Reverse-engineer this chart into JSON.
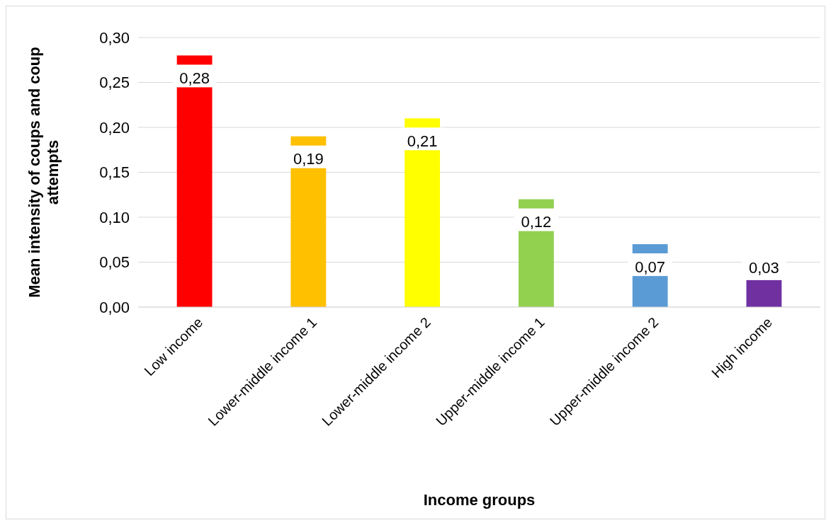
{
  "chart_data": {
    "type": "bar",
    "xlabel": "Income groups",
    "ylabel": "Mean intensity of coups and coup attempts",
    "categories": [
      "Low income",
      "Lower-middle income 1",
      "Lower-middle income 2",
      "Upper-middle income 1",
      "Upper-middle income 2",
      "High income"
    ],
    "values": [
      0.28,
      0.19,
      0.21,
      0.12,
      0.07,
      0.03
    ],
    "colors": [
      "#ff0000",
      "#ffc000",
      "#ffff00",
      "#92d050",
      "#5b9bd5",
      "#7030a0"
    ],
    "value_labels": [
      "0,28",
      "0,19",
      "0,21",
      "0,12",
      "0,07",
      "0,03"
    ],
    "ylim": [
      0,
      0.3
    ],
    "yticks": [
      {
        "value": 0,
        "label": "0,00"
      },
      {
        "value": 0.05,
        "label": "0,05"
      },
      {
        "value": 0.1,
        "label": "0,10"
      },
      {
        "value": 0.15,
        "label": "0,15"
      },
      {
        "value": 0.2,
        "label": "0,20"
      },
      {
        "value": 0.25,
        "label": "0,25"
      },
      {
        "value": 0.3,
        "label": "0,30"
      }
    ],
    "grid": "y"
  }
}
